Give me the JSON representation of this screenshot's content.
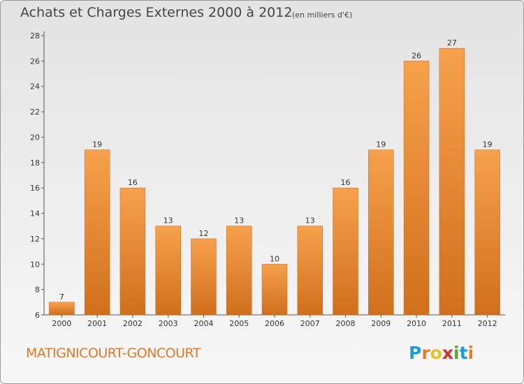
{
  "chart_data": {
    "type": "bar",
    "title": "Achats et Charges Externes 2000 à 2012",
    "unit_label": "(en milliers d'€)",
    "categories": [
      "2000",
      "2001",
      "2002",
      "2003",
      "2004",
      "2005",
      "2006",
      "2007",
      "2008",
      "2009",
      "2010",
      "2011",
      "2012"
    ],
    "values": [
      7,
      19,
      16,
      13,
      12,
      13,
      10,
      13,
      16,
      19,
      26,
      27,
      19
    ],
    "ylim": [
      6,
      28
    ],
    "yticks": [
      6,
      8,
      10,
      12,
      14,
      16,
      18,
      20,
      22,
      24,
      26,
      28
    ],
    "grid": false,
    "bar_color": "#f0913a",
    "xlabel": "",
    "ylabel": ""
  },
  "commune": "MATIGNICOURT-GONCOURT",
  "logo": {
    "letters": [
      "P",
      "r",
      "o",
      "x",
      "i",
      "t",
      "i"
    ],
    "colors": [
      "#1e9be0",
      "#f07b1e",
      "#e8c21e",
      "#d7302b",
      "#5aa832",
      "#1e9be0",
      "#f07b1e"
    ]
  }
}
